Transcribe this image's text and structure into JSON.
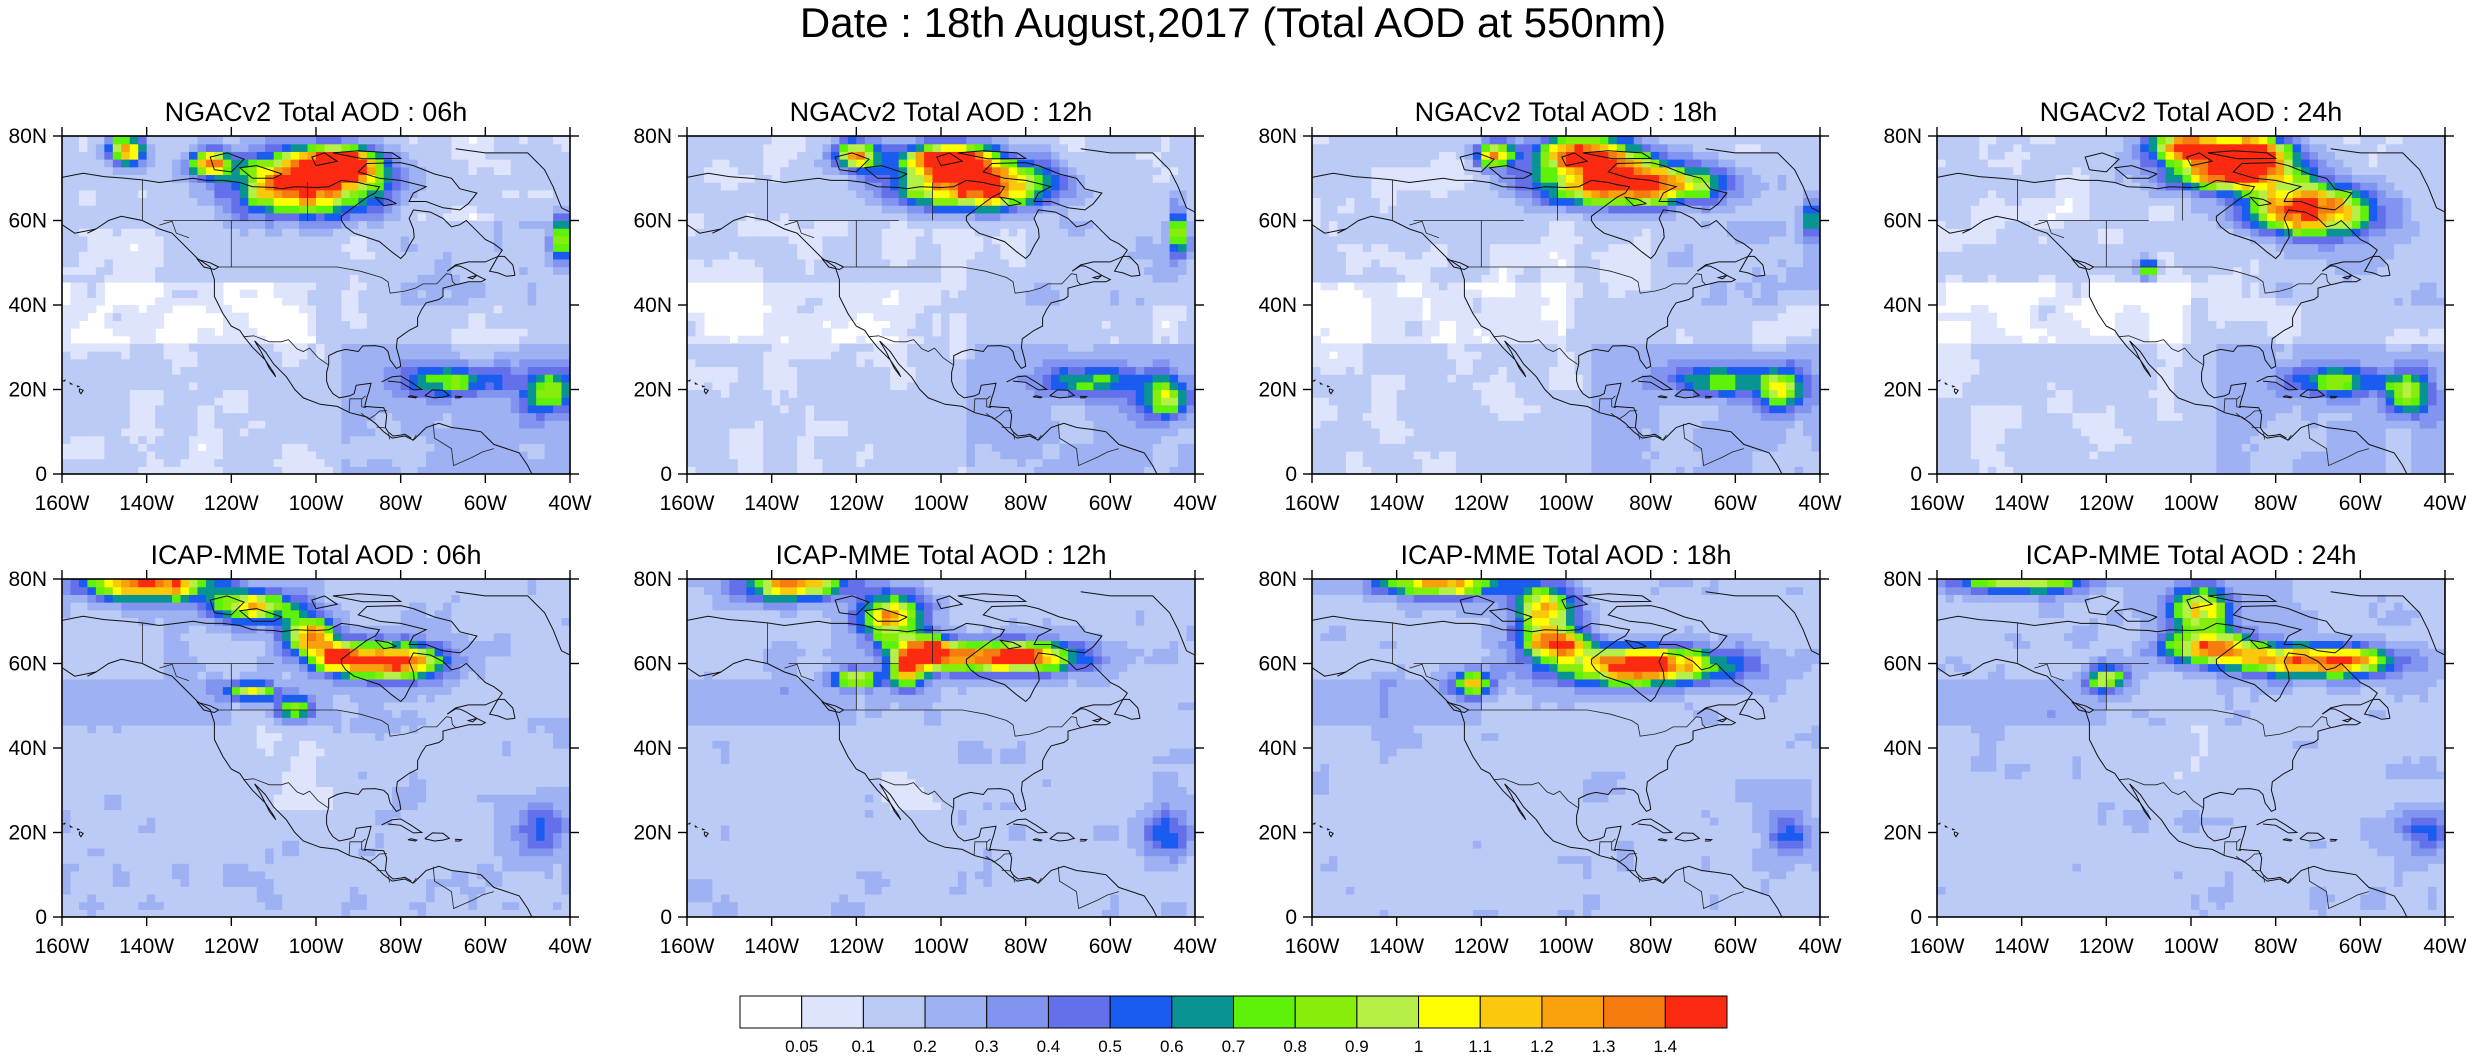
{
  "figure": {
    "title": "Date : 18th August,2017 (Total AOD at 550nm)"
  },
  "axes": {
    "lon_ticks": [
      "160W",
      "140W",
      "120W",
      "100W",
      "80W",
      "60W",
      "40W"
    ],
    "lon_values": [
      -160,
      -140,
      -120,
      -100,
      -80,
      -60,
      -40
    ],
    "lat_ticks": [
      "0",
      "20N",
      "40N",
      "60N",
      "80N"
    ],
    "lat_values": [
      0,
      20,
      40,
      60,
      80
    ],
    "lon_range": [
      -160,
      -40
    ],
    "lat_range": [
      0,
      80
    ]
  },
  "panels": [
    {
      "title": "NGACv2 Total AOD : 06h",
      "model": "NGACv2",
      "forecast_hour": 6
    },
    {
      "title": "NGACv2 Total AOD : 12h",
      "model": "NGACv2",
      "forecast_hour": 12
    },
    {
      "title": "NGACv2 Total AOD : 18h",
      "model": "NGACv2",
      "forecast_hour": 18
    },
    {
      "title": "NGACv2 Total AOD : 24h",
      "model": "NGACv2",
      "forecast_hour": 24
    },
    {
      "title": "ICAP-MME Total AOD : 06h",
      "model": "ICAP-MME",
      "forecast_hour": 6
    },
    {
      "title": "ICAP-MME Total AOD : 12h",
      "model": "ICAP-MME",
      "forecast_hour": 12
    },
    {
      "title": "ICAP-MME Total AOD : 18h",
      "model": "ICAP-MME",
      "forecast_hour": 18
    },
    {
      "title": "ICAP-MME Total AOD : 24h",
      "model": "ICAP-MME",
      "forecast_hour": 24
    }
  ],
  "colorbar": {
    "labels": [
      "0.05",
      "0.1",
      "0.2",
      "0.3",
      "0.4",
      "0.5",
      "0.6",
      "0.7",
      "0.8",
      "0.9",
      "1",
      "1.1",
      "1.2",
      "1.3",
      "1.4"
    ],
    "colors": [
      "#ffffff",
      "#dde4fb",
      "#bccaf6",
      "#9db1f3",
      "#8195f0",
      "#6470ea",
      "#1a5cf0",
      "#0a9393",
      "#5ef10a",
      "#86ee0a",
      "#b6f046",
      "#fefe00",
      "#fbc80b",
      "#f9a00d",
      "#f77c10",
      "#fb2a10"
    ]
  },
  "chart_data": {
    "type": "heatmap",
    "variable": "Total AOD at 550nm",
    "date": "18th August,2017",
    "levels": [
      0.05,
      0.1,
      0.2,
      0.3,
      0.4,
      0.5,
      0.6,
      0.7,
      0.8,
      0.9,
      1,
      1.1,
      1.2,
      1.3,
      1.4
    ],
    "plumes": {
      "NGACv2": {
        "6": [
          {
            "lon": -102,
            "lat": 68,
            "peak": 1.5,
            "rlon": 12,
            "rlat": 5
          },
          {
            "lon": -95,
            "lat": 73,
            "peak": 1.4,
            "rlon": 6,
            "rlat": 2.5
          },
          {
            "lon": -145,
            "lat": 76,
            "peak": 1.2,
            "rlon": 3,
            "rlat": 2.5
          },
          {
            "lon": -125,
            "lat": 73,
            "peak": 1.1,
            "rlon": 3,
            "rlat": 2
          },
          {
            "lon": -42,
            "lat": 55,
            "peak": 0.8,
            "rlon": 1.5,
            "rlat": 4
          },
          {
            "lon": -68,
            "lat": 22,
            "peak": 0.65,
            "rlon": 8,
            "rlat": 2.5
          },
          {
            "lon": -45,
            "lat": 19,
            "peak": 0.7,
            "rlon": 4,
            "rlat": 3.5
          }
        ],
        "12": [
          {
            "lon": -92,
            "lat": 68,
            "peak": 1.5,
            "rlon": 12,
            "rlat": 4
          },
          {
            "lon": -98,
            "lat": 74,
            "peak": 1.4,
            "rlon": 7,
            "rlat": 2.5
          },
          {
            "lon": -120,
            "lat": 75,
            "peak": 1.1,
            "rlon": 4,
            "rlat": 2.5
          },
          {
            "lon": -44,
            "lat": 57,
            "peak": 0.8,
            "rlon": 1.5,
            "rlat": 4
          },
          {
            "lon": -65,
            "lat": 22,
            "peak": 0.6,
            "rlon": 8,
            "rlat": 2.5
          },
          {
            "lon": -47,
            "lat": 18,
            "peak": 0.7,
            "rlon": 4,
            "rlat": 3.5
          }
        ],
        "18": [
          {
            "lon": -85,
            "lat": 68,
            "peak": 1.5,
            "rlon": 14,
            "rlat": 3.5
          },
          {
            "lon": -95,
            "lat": 75,
            "peak": 1.4,
            "rlon": 8,
            "rlat": 3
          },
          {
            "lon": -117,
            "lat": 75,
            "peak": 1.1,
            "rlon": 3,
            "rlat": 2
          },
          {
            "lon": -42,
            "lat": 60,
            "peak": 0.8,
            "rlon": 1.5,
            "rlat": 3
          },
          {
            "lon": -64,
            "lat": 22,
            "peak": 0.6,
            "rlon": 8,
            "rlat": 2.5
          },
          {
            "lon": -49,
            "lat": 20,
            "peak": 0.7,
            "rlon": 4,
            "rlat": 3.5
          }
        ],
        "24": [
          {
            "lon": -72,
            "lat": 62,
            "peak": 1.5,
            "rlon": 10,
            "rlat": 4
          },
          {
            "lon": -90,
            "lat": 71,
            "peak": 1.5,
            "rlon": 10,
            "rlat": 3
          },
          {
            "lon": -100,
            "lat": 77,
            "peak": 1.3,
            "rlon": 7,
            "rlat": 2.5
          },
          {
            "lon": -85,
            "lat": 76,
            "peak": 1.2,
            "rlon": 6,
            "rlat": 2.5
          },
          {
            "lon": -110,
            "lat": 48,
            "peak": 0.9,
            "rlon": 1.5,
            "rlat": 1.5
          },
          {
            "lon": -65,
            "lat": 22,
            "peak": 0.6,
            "rlon": 8,
            "rlat": 2.5
          },
          {
            "lon": -48,
            "lat": 19,
            "peak": 0.65,
            "rlon": 4,
            "rlat": 3.5
          }
        ]
      },
      "ICAP-MME": {
        "6": [
          {
            "lon": -140,
            "lat": 78,
            "peak": 1.4,
            "rlon": 10,
            "rlat": 2.5
          },
          {
            "lon": -115,
            "lat": 73,
            "peak": 1.0,
            "rlon": 7,
            "rlat": 2.5
          },
          {
            "lon": -102,
            "lat": 66,
            "peak": 1.2,
            "rlon": 4,
            "rlat": 3
          },
          {
            "lon": -82,
            "lat": 60,
            "peak": 1.4,
            "rlon": 8,
            "rlat": 3
          },
          {
            "lon": -95,
            "lat": 61,
            "peak": 1.0,
            "rlon": 4,
            "rlat": 2.5
          },
          {
            "lon": -115,
            "lat": 53,
            "peak": 0.9,
            "rlon": 4,
            "rlat": 1.5
          },
          {
            "lon": -105,
            "lat": 49,
            "peak": 0.7,
            "rlon": 3,
            "rlat": 2
          },
          {
            "lon": -47,
            "lat": 20,
            "peak": 0.4,
            "rlon": 4,
            "rlat": 4
          }
        ],
        "12": [
          {
            "lon": -135,
            "lat": 78,
            "peak": 1.2,
            "rlon": 8,
            "rlat": 2.5
          },
          {
            "lon": -112,
            "lat": 70,
            "peak": 1.1,
            "rlon": 5,
            "rlat": 4
          },
          {
            "lon": -85,
            "lat": 61,
            "peak": 1.4,
            "rlon": 12,
            "rlat": 2.5
          },
          {
            "lon": -103,
            "lat": 62,
            "peak": 1.3,
            "rlon": 4,
            "rlat": 2.5
          },
          {
            "lon": -120,
            "lat": 56,
            "peak": 0.9,
            "rlon": 4,
            "rlat": 1.5
          },
          {
            "lon": -108,
            "lat": 58,
            "peak": 1.0,
            "rlon": 3,
            "rlat": 3
          },
          {
            "lon": -47,
            "lat": 20,
            "peak": 0.4,
            "rlon": 4,
            "rlat": 4
          }
        ],
        "18": [
          {
            "lon": -130,
            "lat": 78,
            "peak": 1.1,
            "rlon": 10,
            "rlat": 2
          },
          {
            "lon": -105,
            "lat": 72,
            "peak": 1.0,
            "rlon": 5,
            "rlat": 4
          },
          {
            "lon": -82,
            "lat": 59,
            "peak": 1.4,
            "rlon": 14,
            "rlat": 3
          },
          {
            "lon": -102,
            "lat": 64,
            "peak": 1.2,
            "rlon": 5,
            "rlat": 2.5
          },
          {
            "lon": -122,
            "lat": 55,
            "peak": 0.9,
            "rlon": 3,
            "rlat": 2
          },
          {
            "lon": -47,
            "lat": 20,
            "peak": 0.35,
            "rlon": 4,
            "rlat": 4
          }
        ],
        "24": [
          {
            "lon": -140,
            "lat": 79,
            "peak": 1.0,
            "rlon": 10,
            "rlat": 2
          },
          {
            "lon": -98,
            "lat": 72,
            "peak": 1.0,
            "rlon": 5,
            "rlat": 4
          },
          {
            "lon": -70,
            "lat": 60,
            "peak": 1.4,
            "rlon": 12,
            "rlat": 2.5
          },
          {
            "lon": -95,
            "lat": 63,
            "peak": 1.1,
            "rlon": 8,
            "rlat": 2.5
          },
          {
            "lon": -120,
            "lat": 56,
            "peak": 0.8,
            "rlon": 3,
            "rlat": 2
          },
          {
            "lon": -45,
            "lat": 20,
            "peak": 0.4,
            "rlon": 4,
            "rlat": 4
          }
        ]
      }
    }
  }
}
